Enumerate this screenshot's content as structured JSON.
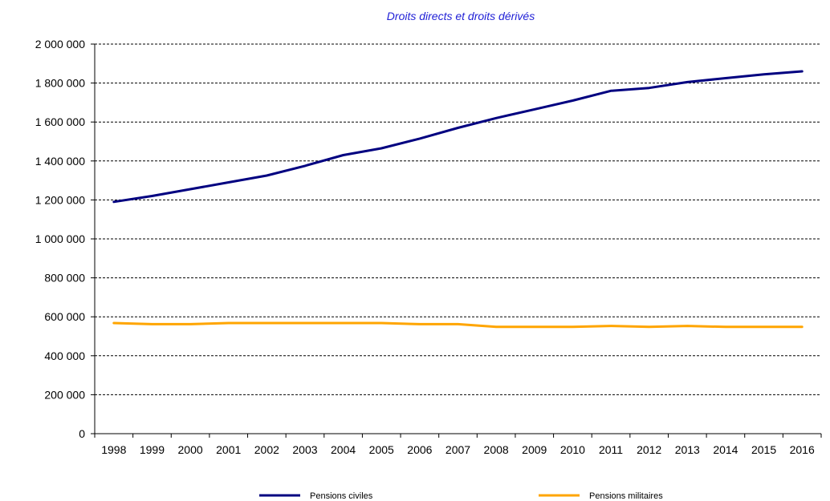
{
  "chart_data": {
    "type": "line",
    "title": "Droits directs et droits dérivés",
    "x": [
      "1998",
      "1999",
      "2000",
      "2001",
      "2002",
      "2003",
      "2004",
      "2005",
      "2006",
      "2007",
      "2008",
      "2009",
      "2010",
      "2011",
      "2012",
      "2013",
      "2014",
      "2015",
      "2016"
    ],
    "series": [
      {
        "name": "Pensions civiles",
        "color": "#000080",
        "values": [
          1190000,
          1220000,
          1255000,
          1290000,
          1325000,
          1375000,
          1430000,
          1465000,
          1515000,
          1570000,
          1620000,
          1665000,
          1710000,
          1760000,
          1775000,
          1805000,
          1825000,
          1845000,
          1860000
        ]
      },
      {
        "name": "Pensions militaires",
        "color": "#FFA500",
        "values": [
          568000,
          562000,
          562000,
          568000,
          568000,
          568000,
          568000,
          568000,
          562000,
          562000,
          548000,
          548000,
          548000,
          553000,
          548000,
          553000,
          548000,
          548000,
          548000
        ]
      }
    ],
    "ylim": [
      0,
      2000000
    ],
    "yticks": [
      "0",
      "200 000",
      "400 000",
      "600 000",
      "800 000",
      "1 000 000",
      "1 200 000",
      "1 400 000",
      "1 600 000",
      "1 800 000",
      "2 000 000"
    ],
    "grid": true,
    "legend": "bottom"
  }
}
